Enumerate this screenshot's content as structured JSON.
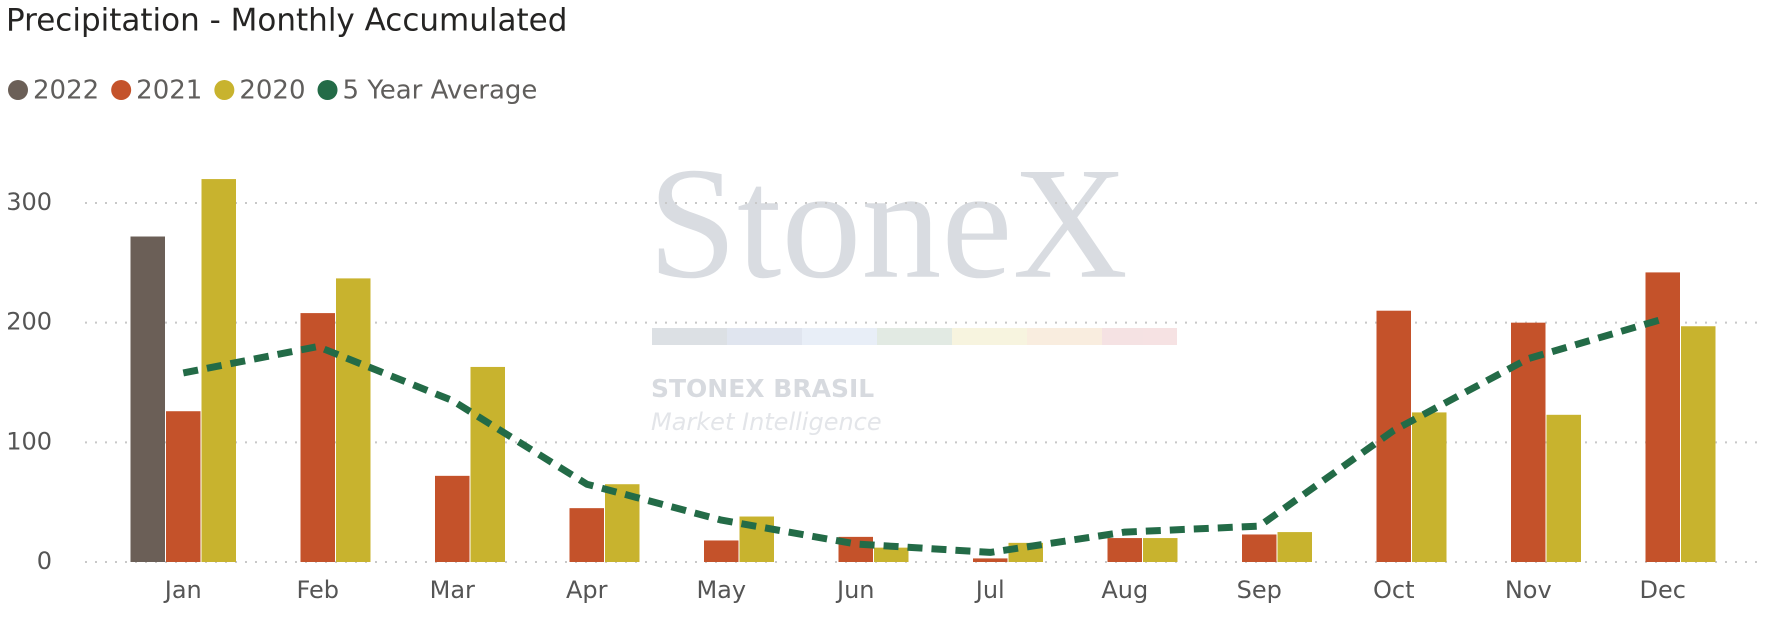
{
  "chart_data": {
    "type": "bar",
    "title": "Precipitation - Monthly Accumulated",
    "categories": [
      "Jan",
      "Feb",
      "Mar",
      "Apr",
      "May",
      "Jun",
      "Jul",
      "Aug",
      "Sep",
      "Oct",
      "Nov",
      "Dec"
    ],
    "series": [
      {
        "name": "2022",
        "color": "#6b5f57",
        "type": "bar",
        "values": [
          272,
          null,
          null,
          null,
          null,
          null,
          null,
          null,
          null,
          null,
          null,
          null
        ]
      },
      {
        "name": "2021",
        "color": "#c4522a",
        "type": "bar",
        "values": [
          126,
          208,
          72,
          45,
          18,
          21,
          3,
          20,
          23,
          210,
          200,
          242
        ]
      },
      {
        "name": "2020",
        "color": "#c8b32e",
        "type": "bar",
        "values": [
          320,
          237,
          163,
          65,
          38,
          12,
          16,
          20,
          25,
          125,
          123,
          197
        ]
      },
      {
        "name": "5 Year Average",
        "color": "#236b47",
        "type": "line",
        "values": [
          158,
          180,
          135,
          65,
          35,
          15,
          8,
          25,
          30,
          110,
          170,
          203
        ]
      }
    ],
    "ylim": [
      0,
      340
    ],
    "yticks": [
      0,
      100,
      200,
      300
    ],
    "grid": true,
    "watermark": {
      "logo": "StoneX",
      "name": "STONEX BRASIL",
      "tagline": "Market Intelligence"
    }
  }
}
